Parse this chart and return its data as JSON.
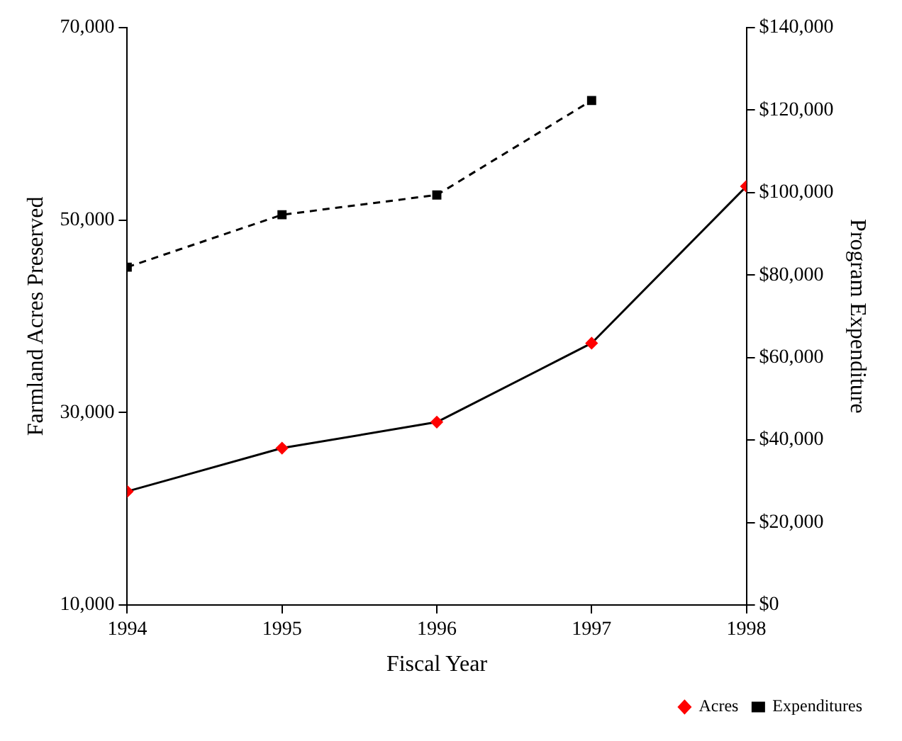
{
  "chart_data": {
    "type": "line",
    "xlabel": "Fiscal Year",
    "ylabel": "Farmland Acres Preserved",
    "y2label": "Program Expenditure",
    "x": [
      1994,
      1995,
      1996,
      1997,
      1998
    ],
    "xlim": [
      1994,
      1998
    ],
    "xticks": [
      1994,
      1995,
      1996,
      1997,
      1998
    ],
    "ylim": [
      10000,
      70000
    ],
    "yticks": [
      {
        "value": 10000,
        "label": "10,000"
      },
      {
        "value": 30000,
        "label": "30,000"
      },
      {
        "value": 50000,
        "label": "50,000"
      },
      {
        "value": 70000,
        "label": "70,000"
      }
    ],
    "y2lim": [
      0,
      140000
    ],
    "y2ticks": [
      {
        "value": 0,
        "label": "$0"
      },
      {
        "value": 20000,
        "label": "$20,000"
      },
      {
        "value": 40000,
        "label": "$40,000"
      },
      {
        "value": 60000,
        "label": "$60,000"
      },
      {
        "value": 80000,
        "label": "$80,000"
      },
      {
        "value": 100000,
        "label": "$100,000"
      },
      {
        "value": 120000,
        "label": "$120,000"
      },
      {
        "value": 140000,
        "label": "$140,000"
      }
    ],
    "series": [
      {
        "name": "Acres",
        "color": "#000000",
        "colors": [
          "#ff0000",
          "#ff0000",
          "#ff0000",
          "#ff0000",
          "#ff0000"
        ],
        "marker": "diamond",
        "line_style": "solid",
        "values": [
          21800,
          26300,
          29000,
          37200,
          53500
        ]
      },
      {
        "name": "Expenditures",
        "color": "#000000",
        "marker": "square",
        "line_style": "dashed",
        "axis": "y2",
        "values": [
          81900,
          94600,
          99400,
          122300,
          null
        ]
      }
    ],
    "grid": false,
    "legend": "bottom right"
  }
}
